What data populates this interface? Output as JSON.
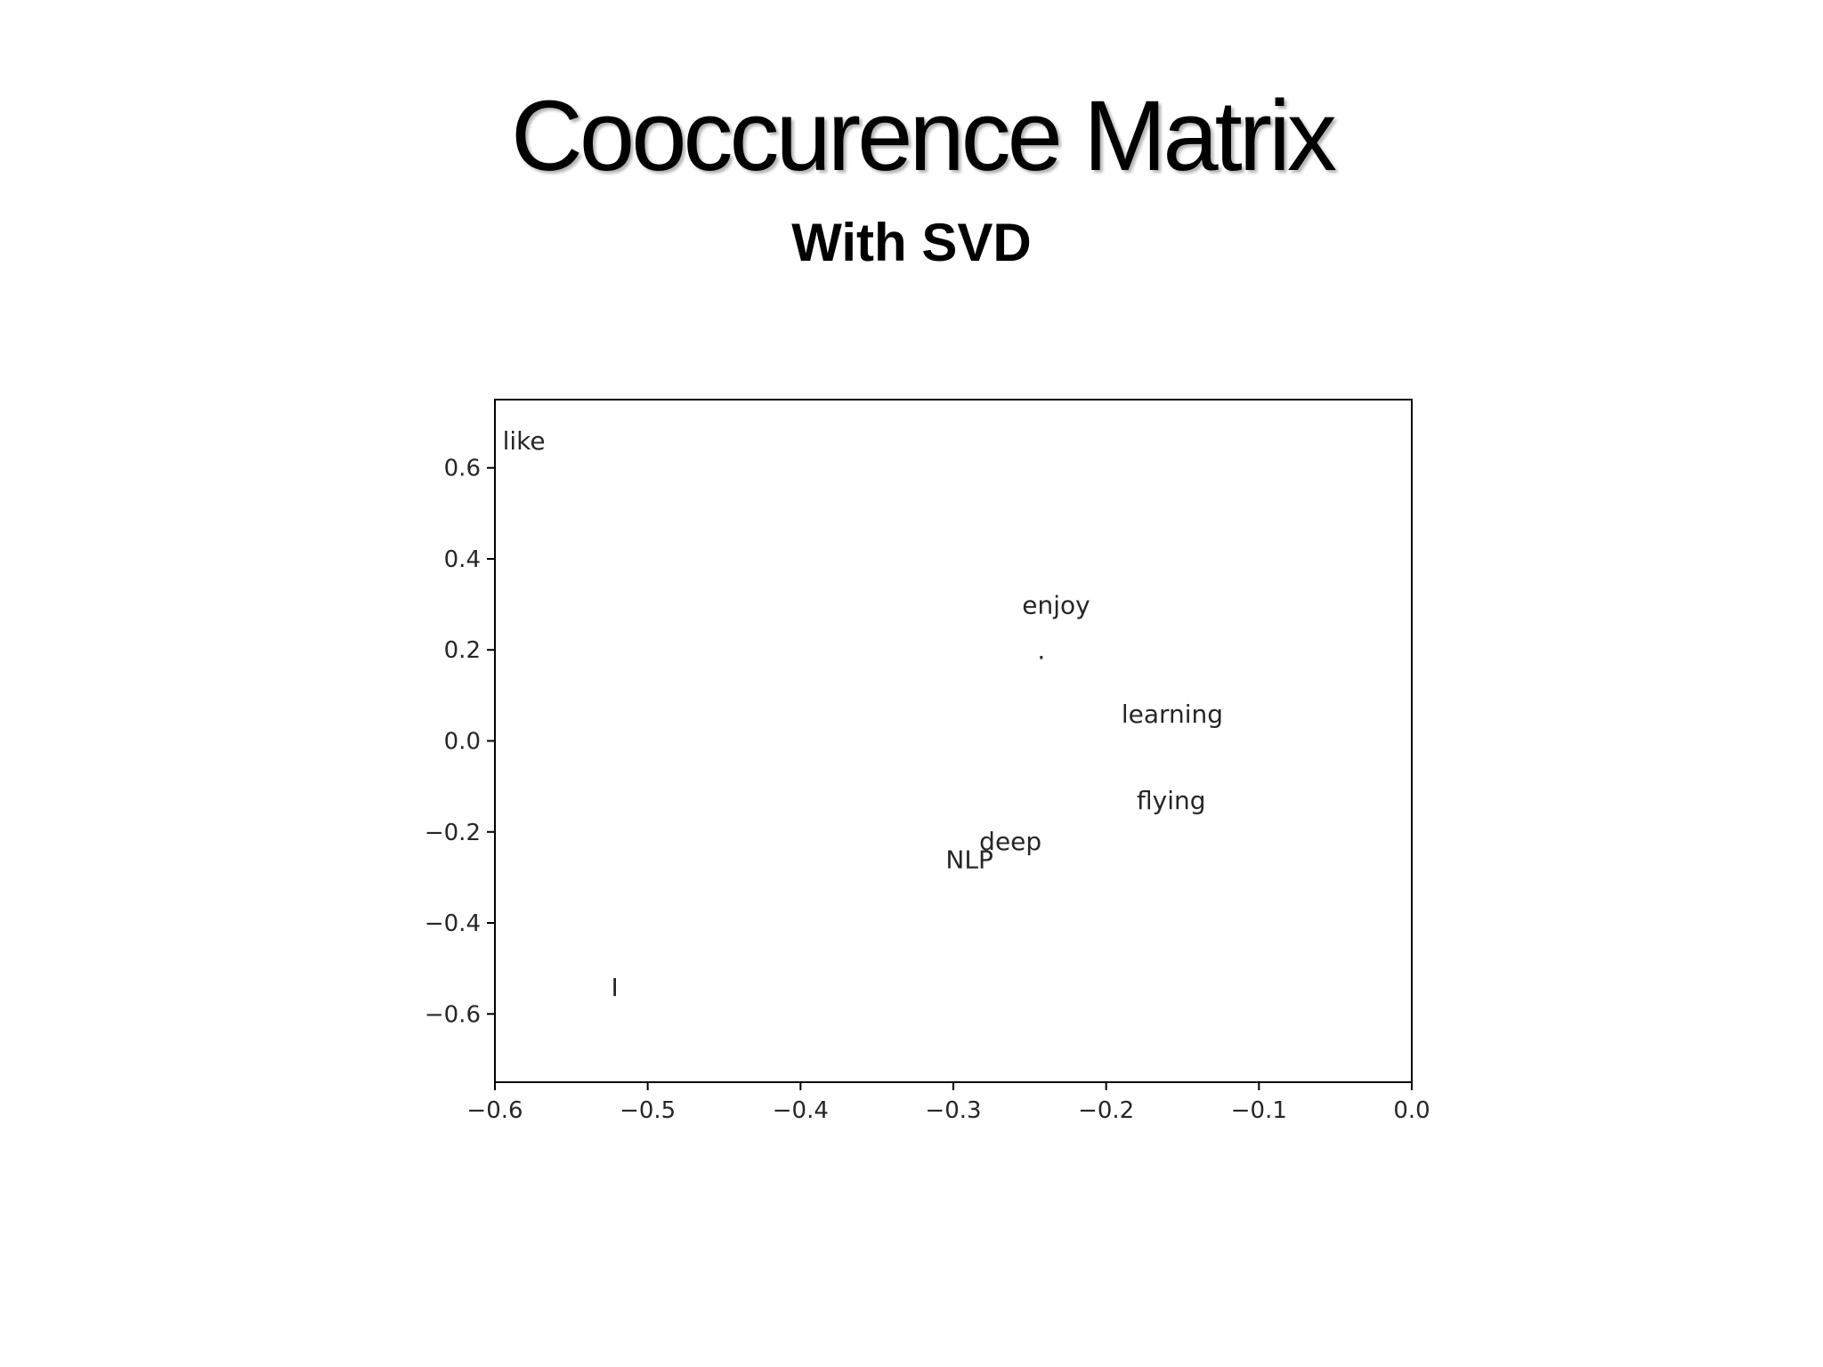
{
  "slide": {
    "title": "Cooccurence Matrix",
    "subtitle": "With SVD"
  },
  "chart_data": {
    "type": "scatter",
    "title": "",
    "xlabel": "",
    "ylabel": "",
    "xlim": [
      -0.6,
      0.0
    ],
    "ylim": [
      -0.75,
      0.75
    ],
    "grid": false,
    "legend": false,
    "x_ticks": [
      {
        "value": -0.6,
        "label": "−0.6"
      },
      {
        "value": -0.5,
        "label": "−0.5"
      },
      {
        "value": -0.4,
        "label": "−0.4"
      },
      {
        "value": -0.3,
        "label": "−0.3"
      },
      {
        "value": -0.2,
        "label": "−0.2"
      },
      {
        "value": -0.1,
        "label": "−0.1"
      },
      {
        "value": 0.0,
        "label": "0.0"
      }
    ],
    "y_ticks": [
      {
        "value": 0.6,
        "label": "0.6"
      },
      {
        "value": 0.4,
        "label": "0.4"
      },
      {
        "value": 0.2,
        "label": "0.2"
      },
      {
        "value": 0.0,
        "label": "0.0"
      },
      {
        "value": -0.2,
        "label": "−0.2"
      },
      {
        "value": -0.4,
        "label": "−0.4"
      },
      {
        "value": -0.6,
        "label": "−0.6"
      }
    ],
    "points": [
      {
        "word": "like",
        "x": -0.595,
        "y": 0.64
      },
      {
        "word": "enjoy",
        "x": -0.255,
        "y": 0.28
      },
      {
        "word": ".",
        "x": -0.245,
        "y": 0.18
      },
      {
        "word": "learning",
        "x": -0.19,
        "y": 0.04
      },
      {
        "word": "flying",
        "x": -0.18,
        "y": -0.15
      },
      {
        "word": "deep",
        "x": -0.283,
        "y": -0.24
      },
      {
        "word": "NLP",
        "x": -0.305,
        "y": -0.28
      },
      {
        "word": "I",
        "x": -0.524,
        "y": -0.56
      }
    ]
  }
}
